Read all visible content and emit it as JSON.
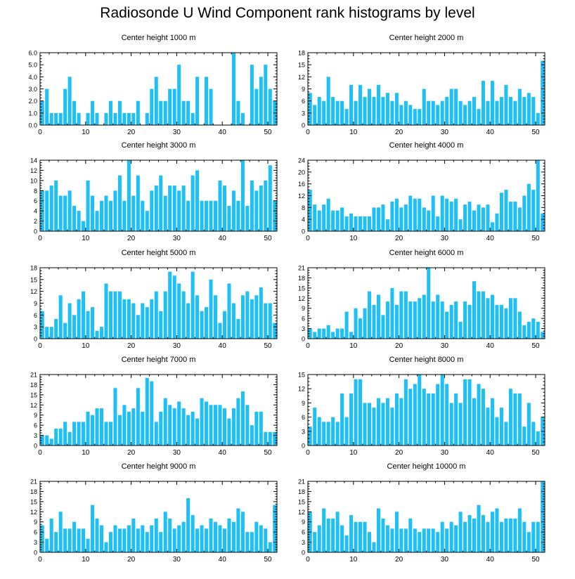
{
  "title": "Radiosonde U Wind Component rank histograms by level",
  "bar_color": "#1ec0f5",
  "chart_data": [
    {
      "type": "bar",
      "title": "Center height 1000 m",
      "xlim": [
        0,
        52
      ],
      "ylim": [
        0,
        6
      ],
      "yticks": [
        0,
        1,
        2,
        3,
        4,
        5,
        6
      ],
      "ytick_labels": [
        "0.0",
        "1.0",
        "2.0",
        "3.0",
        "4.0",
        "5.0",
        "6.0"
      ],
      "xticks": [
        0,
        10,
        20,
        30,
        40,
        50
      ],
      "xtick_labels": [
        "0",
        "10",
        "20",
        "30",
        "40",
        "50"
      ],
      "values": [
        2,
        3,
        1,
        1,
        1,
        3,
        4,
        2,
        1,
        0,
        1,
        2,
        1,
        0,
        1,
        2,
        1,
        2,
        1,
        1,
        1,
        2,
        0,
        1,
        3,
        4,
        2,
        2,
        3,
        3,
        5,
        2,
        2,
        1,
        4,
        0,
        4,
        3,
        0,
        0,
        0,
        0,
        6,
        2,
        1,
        0,
        5,
        3,
        4,
        5,
        3,
        2
      ]
    },
    {
      "type": "bar",
      "title": "Center height 2000 m",
      "xlim": [
        0,
        52
      ],
      "ylim": [
        0,
        18
      ],
      "yticks": [
        0,
        3,
        6,
        9,
        12,
        15,
        18
      ],
      "ytick_labels": [
        "0",
        "3",
        "6",
        "9",
        "12",
        "15",
        "18"
      ],
      "xticks": [
        0,
        10,
        20,
        30,
        40,
        50
      ],
      "xtick_labels": [
        "0",
        "10",
        "20",
        "30",
        "40",
        "50"
      ],
      "values": [
        8,
        5,
        7,
        6,
        12,
        7,
        6,
        6,
        4,
        10,
        6,
        10,
        7,
        9,
        7,
        10,
        7,
        8,
        6,
        8,
        5,
        6,
        5,
        4,
        4,
        9,
        6,
        6,
        5,
        6,
        7,
        9,
        9,
        6,
        5,
        6,
        7,
        4,
        11,
        6,
        11,
        6,
        7,
        10,
        7,
        6,
        9,
        7,
        8,
        7,
        3,
        16
      ]
    },
    {
      "type": "bar",
      "title": "Center height 3000 m",
      "xlim": [
        0,
        52
      ],
      "ylim": [
        0,
        14
      ],
      "yticks": [
        0,
        2,
        4,
        6,
        8,
        10,
        12,
        14
      ],
      "ytick_labels": [
        "0",
        "2",
        "4",
        "6",
        "8",
        "10",
        "12",
        "14"
      ],
      "xticks": [
        0,
        10,
        20,
        30,
        40,
        50
      ],
      "xtick_labels": [
        "0",
        "10",
        "20",
        "30",
        "40",
        "50"
      ],
      "values": [
        8,
        8,
        9,
        10,
        7,
        7,
        8,
        5,
        4,
        2,
        10,
        7,
        4,
        6,
        7,
        6,
        8,
        11,
        6,
        14,
        7,
        11,
        6,
        4,
        8,
        9,
        11,
        7,
        9,
        9,
        8,
        9,
        6,
        11,
        12,
        6,
        6,
        6,
        6,
        10,
        9,
        5,
        8,
        6,
        14,
        5,
        10,
        8,
        9,
        10,
        13,
        6
      ]
    },
    {
      "type": "bar",
      "title": "Center height 4000 m",
      "xlim": [
        0,
        52
      ],
      "ylim": [
        0,
        24
      ],
      "yticks": [
        0,
        4,
        8,
        12,
        16,
        20,
        24
      ],
      "ytick_labels": [
        "0",
        "4",
        "8",
        "12",
        "16",
        "20",
        "24"
      ],
      "xticks": [
        0,
        10,
        20,
        30,
        40,
        50
      ],
      "xtick_labels": [
        "0",
        "10",
        "20",
        "30",
        "40",
        "50"
      ],
      "values": [
        14,
        9,
        7,
        9,
        11,
        7,
        7,
        8,
        5,
        6,
        5,
        5,
        5,
        5,
        8,
        8,
        9,
        4,
        10,
        11,
        8,
        9,
        12,
        11,
        11,
        8,
        7,
        12,
        5,
        12,
        11,
        10,
        11,
        4,
        9,
        10,
        7,
        9,
        8,
        9,
        3,
        6,
        13,
        14,
        10,
        10,
        8,
        12,
        16,
        14,
        24,
        6
      ]
    },
    {
      "type": "bar",
      "title": "Center height 5000 m",
      "xlim": [
        0,
        52
      ],
      "ylim": [
        0,
        18
      ],
      "yticks": [
        0,
        3,
        6,
        9,
        12,
        15,
        18
      ],
      "ytick_labels": [
        "0",
        "3",
        "6",
        "9",
        "12",
        "15",
        "18"
      ],
      "xticks": [
        0,
        10,
        20,
        30,
        40,
        50
      ],
      "xtick_labels": [
        "0",
        "10",
        "20",
        "30",
        "40",
        "50"
      ],
      "values": [
        7,
        3,
        3,
        5,
        11,
        4,
        9,
        6,
        10,
        12,
        7,
        8,
        2,
        3,
        14,
        12,
        12,
        12,
        10,
        10,
        9,
        6,
        9,
        8,
        10,
        12,
        7,
        12,
        17,
        16,
        14,
        12,
        9,
        17,
        11,
        7,
        8,
        15,
        11,
        4,
        7,
        14,
        9,
        5,
        11,
        12,
        10,
        11,
        13,
        9,
        9,
        4
      ]
    },
    {
      "type": "bar",
      "title": "Center height 6000 m",
      "xlim": [
        0,
        52
      ],
      "ylim": [
        0,
        21
      ],
      "yticks": [
        0,
        3,
        6,
        9,
        12,
        15,
        18,
        21
      ],
      "ytick_labels": [
        "0",
        "3",
        "6",
        "9",
        "12",
        "15",
        "18",
        "21"
      ],
      "xticks": [
        0,
        10,
        20,
        30,
        40,
        50
      ],
      "xtick_labels": [
        "0",
        "10",
        "20",
        "30",
        "40",
        "50"
      ],
      "values": [
        3,
        2,
        3,
        3,
        4,
        2,
        3,
        3,
        8,
        2,
        9,
        6,
        9,
        14,
        10,
        13,
        7,
        11,
        15,
        10,
        14,
        14,
        11,
        11,
        12,
        13,
        21,
        11,
        13,
        11,
        8,
        10,
        11,
        5,
        11,
        10,
        17,
        14,
        14,
        12,
        13,
        10,
        10,
        9,
        12,
        12,
        8,
        4,
        5,
        6,
        5,
        2
      ]
    },
    {
      "type": "bar",
      "title": "Center height 7000 m",
      "xlim": [
        0,
        52
      ],
      "ylim": [
        0,
        21
      ],
      "yticks": [
        0,
        3,
        6,
        9,
        12,
        15,
        18,
        21
      ],
      "ytick_labels": [
        "0",
        "3",
        "6",
        "9",
        "12",
        "15",
        "18",
        "21"
      ],
      "xticks": [
        0,
        10,
        20,
        30,
        40,
        50
      ],
      "xtick_labels": [
        "0",
        "10",
        "20",
        "30",
        "40",
        "50"
      ],
      "values": [
        3,
        3,
        2,
        5,
        5,
        7,
        4,
        7,
        7,
        7,
        10,
        9,
        11,
        11,
        7,
        7,
        17,
        9,
        12,
        10,
        11,
        17,
        10,
        20,
        19,
        7,
        10,
        14,
        12,
        11,
        13,
        11,
        9,
        10,
        8,
        14,
        13,
        12,
        12,
        12,
        11,
        8,
        11,
        14,
        16,
        12,
        6,
        10,
        10,
        4,
        4,
        4
      ]
    },
    {
      "type": "bar",
      "title": "Center height 8000 m",
      "xlim": [
        0,
        52
      ],
      "ylim": [
        0,
        15
      ],
      "yticks": [
        0,
        3,
        6,
        9,
        12,
        15
      ],
      "ytick_labels": [
        "0",
        "3",
        "6",
        "9",
        "12",
        "15"
      ],
      "xticks": [
        0,
        10,
        20,
        30,
        40,
        50
      ],
      "xtick_labels": [
        "0",
        "10",
        "20",
        "30",
        "40",
        "50"
      ],
      "values": [
        4,
        8,
        6,
        5,
        5,
        6,
        5,
        11,
        6,
        11,
        14,
        14,
        9,
        9,
        8,
        10,
        9,
        10,
        8,
        11,
        10,
        14,
        12,
        13,
        15,
        12,
        11,
        11,
        13,
        15,
        13,
        9,
        11,
        9,
        14,
        14,
        10,
        13,
        12,
        8,
        10,
        6,
        8,
        5,
        12,
        11,
        11,
        4,
        9,
        5,
        3,
        6
      ]
    },
    {
      "type": "bar",
      "title": "Center height 9000 m",
      "xlim": [
        0,
        52
      ],
      "ylim": [
        0,
        21
      ],
      "yticks": [
        0,
        3,
        6,
        9,
        12,
        15,
        18,
        21
      ],
      "ytick_labels": [
        "0",
        "3",
        "6",
        "9",
        "12",
        "15",
        "18",
        "21"
      ],
      "xticks": [
        0,
        10,
        20,
        30,
        40,
        50
      ],
      "xtick_labels": [
        "0",
        "10",
        "20",
        "30",
        "40",
        "50"
      ],
      "values": [
        8,
        4,
        10,
        6,
        12,
        7,
        7,
        9,
        7,
        7,
        4,
        14,
        10,
        8,
        3,
        6,
        8,
        7,
        7,
        8,
        10,
        7,
        8,
        6,
        8,
        10,
        6,
        12,
        10,
        7,
        8,
        9,
        16,
        11,
        7,
        8,
        7,
        10,
        9,
        8,
        7,
        10,
        9,
        13,
        12,
        6,
        6,
        9,
        8,
        7,
        3,
        14
      ]
    },
    {
      "type": "bar",
      "title": "Center height 10000 m",
      "xlim": [
        0,
        52
      ],
      "ylim": [
        0,
        21
      ],
      "yticks": [
        0,
        3,
        6,
        9,
        12,
        15,
        18,
        21
      ],
      "ytick_labels": [
        "0",
        "3",
        "6",
        "9",
        "12",
        "15",
        "18",
        "21"
      ],
      "xticks": [
        0,
        10,
        20,
        30,
        40,
        50
      ],
      "xtick_labels": [
        "0",
        "10",
        "20",
        "30",
        "40",
        "50"
      ],
      "values": [
        12,
        6,
        8,
        13,
        10,
        10,
        12,
        8,
        5,
        11,
        9,
        9,
        9,
        6,
        3,
        13,
        10,
        8,
        7,
        12,
        7,
        7,
        10,
        7,
        6,
        7,
        7,
        7,
        6,
        9,
        7,
        9,
        8,
        12,
        9,
        11,
        10,
        14,
        11,
        9,
        12,
        13,
        9,
        10,
        10,
        10,
        13,
        9,
        6,
        9,
        9,
        21
      ]
    }
  ]
}
